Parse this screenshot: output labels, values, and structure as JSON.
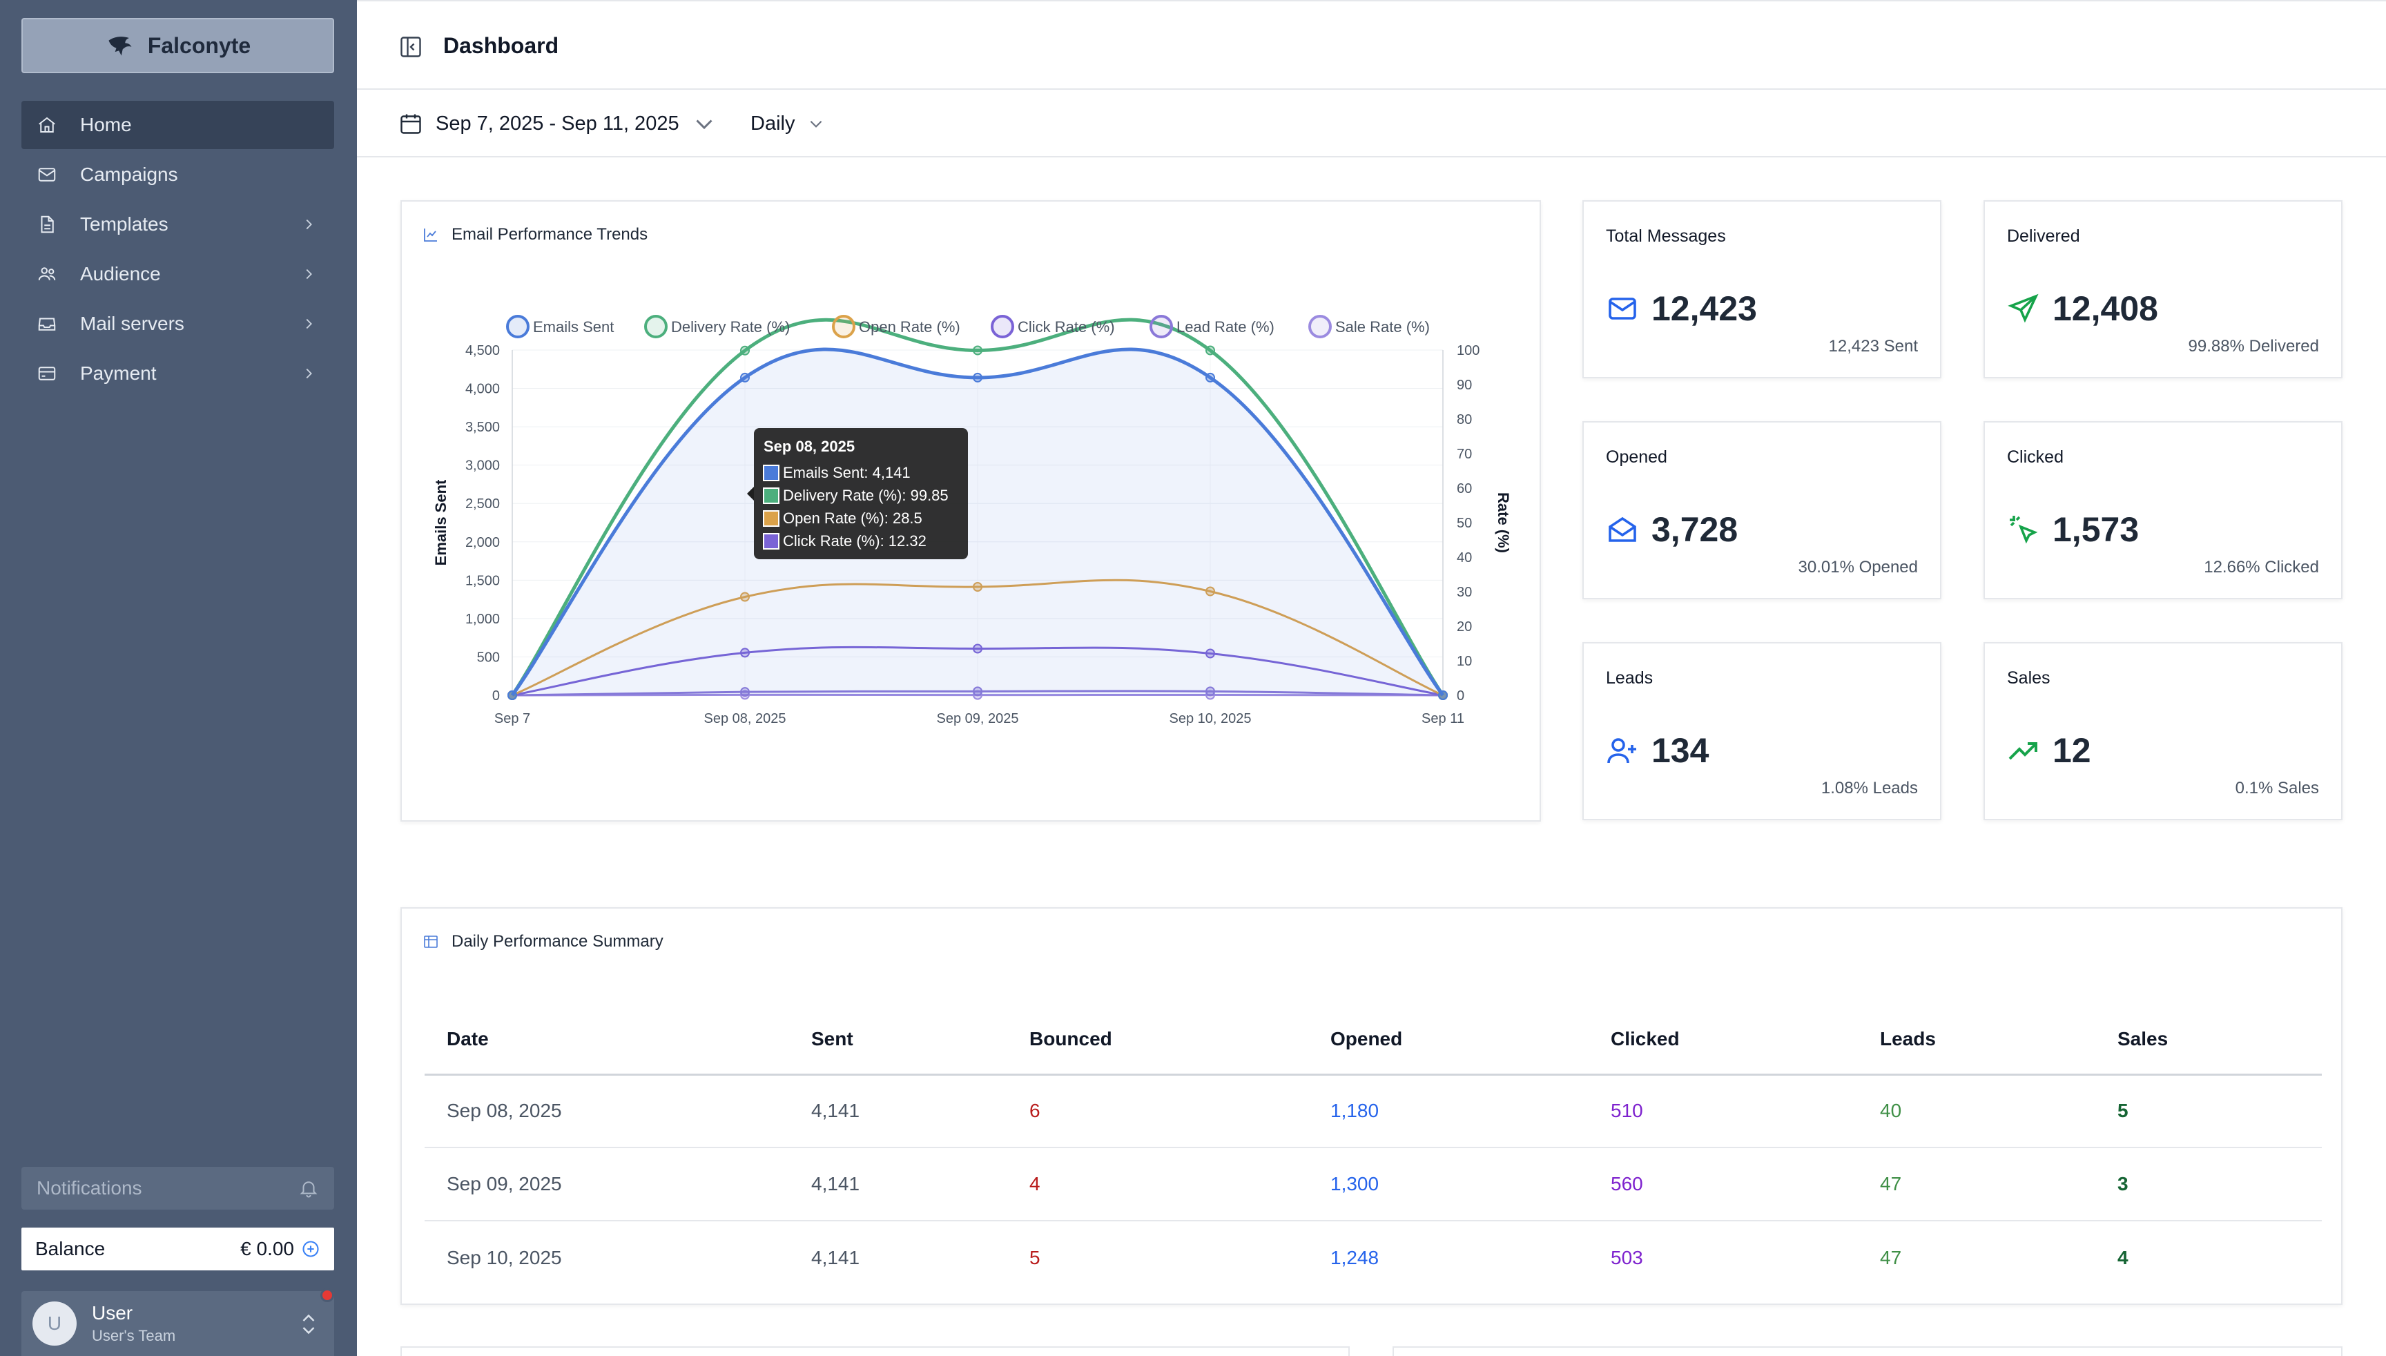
{
  "brand": {
    "name": "Falconyte"
  },
  "sidebar": {
    "items": [
      {
        "label": "Home",
        "icon": "home-icon",
        "active": true,
        "has_children": false
      },
      {
        "label": "Campaigns",
        "icon": "mail-icon",
        "active": false,
        "has_children": false
      },
      {
        "label": "Templates",
        "icon": "file-icon",
        "active": false,
        "has_children": true
      },
      {
        "label": "Audience",
        "icon": "users-icon",
        "active": false,
        "has_children": true
      },
      {
        "label": "Mail servers",
        "icon": "inbox-icon",
        "active": false,
        "has_children": true
      },
      {
        "label": "Payment",
        "icon": "card-icon",
        "active": false,
        "has_children": true
      }
    ],
    "notifications_label": "Notifications",
    "balance_label": "Balance",
    "balance_value": "€ 0.00",
    "user_name": "User",
    "user_team": "User's Team",
    "user_initial": "U"
  },
  "header": {
    "title": "Dashboard"
  },
  "filters": {
    "date_range": "Sep 7, 2025 - Sep 11, 2025",
    "period": "Daily"
  },
  "chart_title": "Email Performance Trends",
  "stats": {
    "total": {
      "label": "Total Messages",
      "value": "12,423",
      "sub": "12,423 Sent"
    },
    "delivered": {
      "label": "Delivered",
      "value": "12,408",
      "sub": "99.88% Delivered"
    },
    "opened": {
      "label": "Opened",
      "value": "3,728",
      "sub": "30.01% Opened"
    },
    "clicked": {
      "label": "Clicked",
      "value": "1,573",
      "sub": "12.66% Clicked"
    },
    "leads": {
      "label": "Leads",
      "value": "134",
      "sub": "1.08% Leads"
    },
    "sales": {
      "label": "Sales",
      "value": "12",
      "sub": "0.1% Sales"
    }
  },
  "table": {
    "title": "Daily Performance Summary",
    "columns": [
      "Date",
      "Sent",
      "Bounced",
      "Opened",
      "Clicked",
      "Leads",
      "Sales"
    ],
    "rows": [
      [
        "Sep 08, 2025",
        "4,141",
        "6",
        "1,180",
        "510",
        "40",
        "5"
      ],
      [
        "Sep 09, 2025",
        "4,141",
        "4",
        "1,300",
        "560",
        "47",
        "3"
      ],
      [
        "Sep 10, 2025",
        "4,141",
        "5",
        "1,248",
        "503",
        "47",
        "4"
      ]
    ]
  },
  "colors": {
    "sent": "#4a7bd9",
    "delivery": "#4caf7d",
    "open": "#dba24a",
    "click": "#7a63d6",
    "lead": "#8a78d8",
    "sale": "#9b8be0"
  },
  "chart_data": {
    "type": "line",
    "title": "Email Performance Trends",
    "x": [
      "Sep 7",
      "Sep 08, 2025",
      "Sep 09, 2025",
      "Sep 10, 2025",
      "Sep 11"
    ],
    "ylabel": "Emails Sent",
    "y2label": "Rate (%)",
    "ylim": [
      0,
      4500
    ],
    "y2lim": [
      0,
      100
    ],
    "yticks": [
      "0",
      "500",
      "1,000",
      "1,500",
      "2,000",
      "2,500",
      "3,000",
      "3,500",
      "4,000",
      "4,500"
    ],
    "y2ticks": [
      "0",
      "10",
      "20",
      "30",
      "40",
      "50",
      "60",
      "70",
      "80",
      "90",
      "100"
    ],
    "legend_position": "top",
    "series": [
      {
        "name": "Emails Sent",
        "axis": "left",
        "color_key": "sent",
        "values": [
          0,
          4141,
          4141,
          4141,
          0
        ],
        "fill": true
      },
      {
        "name": "Delivery Rate (%)",
        "axis": "right",
        "color_key": "delivery",
        "values": [
          0,
          99.85,
          99.9,
          99.9,
          0
        ]
      },
      {
        "name": "Open Rate (%)",
        "axis": "right",
        "color_key": "open",
        "values": [
          0,
          28.5,
          31.4,
          30.1,
          0
        ]
      },
      {
        "name": "Click Rate (%)",
        "axis": "right",
        "color_key": "click",
        "values": [
          0,
          12.32,
          13.5,
          12.1,
          0
        ]
      },
      {
        "name": "Lead Rate (%)",
        "axis": "right",
        "color_key": "lead",
        "values": [
          0,
          0.97,
          1.13,
          1.13,
          0
        ]
      },
      {
        "name": "Sale Rate (%)",
        "axis": "right",
        "color_key": "sale",
        "values": [
          0,
          0.12,
          0.07,
          0.1,
          0
        ]
      }
    ],
    "tooltip": {
      "title": "Sep 08, 2025",
      "lines": [
        "Emails Sent: 4,141",
        "Delivery Rate (%): 99.85",
        "Open Rate (%): 28.5",
        "Click Rate (%): 12.32"
      ],
      "color_keys": [
        "sent",
        "delivery",
        "open",
        "click"
      ]
    }
  }
}
